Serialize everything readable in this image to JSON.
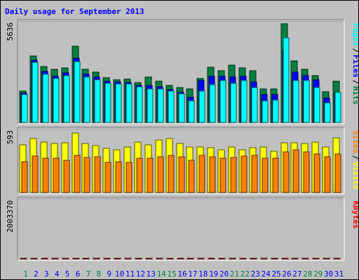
{
  "chart_data": {
    "type": "bar",
    "title": "Daily usage for September 2013",
    "categories": [
      "1",
      "2",
      "3",
      "4",
      "5",
      "6",
      "7",
      "8",
      "9",
      "10",
      "11",
      "12",
      "13",
      "14",
      "15",
      "16",
      "17",
      "18",
      "19",
      "20",
      "21",
      "22",
      "23",
      "24",
      "25",
      "26",
      "27",
      "28",
      "29",
      "30",
      "31"
    ],
    "weekend_days": [
      "1",
      "7",
      "8",
      "14",
      "15",
      "21",
      "22",
      "28",
      "29"
    ],
    "panels": [
      {
        "id": "hits_files_pages",
        "max_label": "5636",
        "ylim": [
          0,
          5636
        ],
        "legend": [
          "Pages",
          "Files",
          "Hits"
        ],
        "series": [
          {
            "name": "Hits",
            "color": "#008040",
            "values": [
              1780,
              3700,
              3140,
              2960,
              3070,
              4250,
              2990,
              2820,
              2520,
              2400,
              2430,
              2230,
              2550,
              2300,
              2060,
              1940,
              1880,
              2460,
              3080,
              2890,
              3200,
              3040,
              2910,
              1870,
              1870,
              5520,
              3430,
              2960,
              2620,
              1740,
              2290
            ]
          },
          {
            "name": "Files",
            "color": "#0000ff",
            "values": [
              1640,
              3480,
              2860,
              2580,
              2760,
              3620,
              2700,
              2560,
              2300,
              2280,
              2250,
              2070,
              2060,
              1990,
              1820,
              1690,
              1400,
              2330,
              2580,
              2570,
              2530,
              2570,
              2260,
              1570,
              1550,
              4020,
              2800,
              2640,
              2390,
              1380,
              1690
            ]
          },
          {
            "name": "Pages",
            "color": "#00ffff",
            "values": [
              1560,
              3350,
              2700,
              2460,
              2620,
              3420,
              2530,
              2400,
              2200,
              2160,
              2140,
              1990,
              1890,
              1880,
              1760,
              1600,
              1200,
              1760,
              2120,
              2330,
              2180,
              2340,
              1940,
              1200,
              1250,
              4730,
              2360,
              2330,
              1960,
              1090,
              1700
            ]
          }
        ]
      },
      {
        "id": "visits_sites",
        "max_label": "593",
        "ylim": [
          0,
          593
        ],
        "legend": [
          "Sites",
          "Visits"
        ],
        "series": [
          {
            "name": "Visits",
            "color": "#ffff00",
            "values": [
              445,
              510,
              475,
              460,
              470,
              560,
              460,
              440,
              415,
              400,
              425,
              475,
              445,
              495,
              510,
              460,
              425,
              430,
              420,
              400,
              430,
              405,
              420,
              425,
              390,
              470,
              465,
              460,
              475,
              430,
              515
            ]
          },
          {
            "name": "Sites",
            "color": "#ff8000",
            "values": [
              290,
              345,
              325,
              320,
              305,
              350,
              330,
              335,
              285,
              290,
              285,
              325,
              325,
              335,
              350,
              335,
              300,
              350,
              335,
              320,
              330,
              345,
              350,
              325,
              320,
              380,
              400,
              385,
              360,
              335,
              365
            ]
          }
        ]
      },
      {
        "id": "kbytes",
        "max_label": "2003370",
        "ylim": [
          0,
          2003370
        ],
        "legend": [
          "KBytes"
        ],
        "series": [
          {
            "name": "KBytes",
            "color": "#ff0000",
            "values": [
              760,
              760,
              600,
              660,
              880,
              2000,
              1380,
              1320,
              1030,
              1050,
              940,
              830,
              850,
              820,
              820,
              430,
              380,
              330,
              390,
              380,
              340,
              260,
              270,
              330,
              470,
              410,
              490,
              520,
              380,
              390,
              720
            ]
          }
        ]
      }
    ]
  },
  "colors": {
    "frame_bg": "#c0c0c0",
    "title": "#0000ff",
    "weekday_label": "#0000ff",
    "weekend_label": "#008040"
  }
}
